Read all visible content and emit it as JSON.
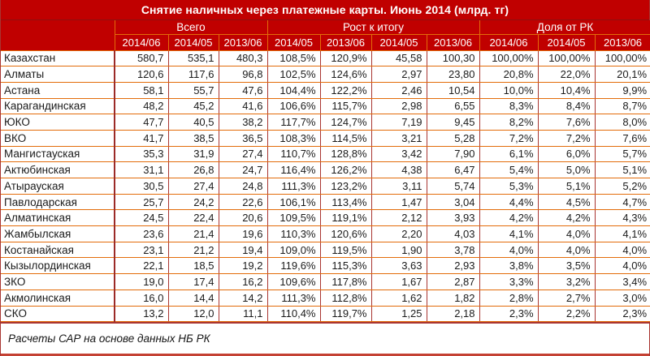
{
  "colors": {
    "header_bg": "#C00000",
    "header_text": "#FFFFFF",
    "border_orange": "#E36C0A",
    "border_dark_red": "#A93531",
    "cell_text": "#1B1B1B",
    "page_bg": "#FFFFFF"
  },
  "chart_data": {
    "type": "table",
    "title": "Снятие наличных через платежные карты. Июнь 2014 (млрд. тг)",
    "source_note": "Расчеты САР на основе данных НБ РК",
    "column_groups": [
      {
        "label": "Всего",
        "span": 3
      },
      {
        "label": "Рост к итогу",
        "span": 4
      },
      {
        "label": "Доля от РК",
        "span": 3
      }
    ],
    "columns": [
      "2014/06",
      "2014/05",
      "2013/06",
      "2014/05",
      "2013/06",
      "2014/05",
      "2013/06",
      "2014/06",
      "2014/05",
      "2013/06"
    ],
    "rows": [
      {
        "region": "Казахстан",
        "values": [
          "580,7",
          "535,1",
          "480,3",
          "108,5%",
          "120,9%",
          "45,58",
          "100,30",
          "100,00%",
          "100,00%",
          "100,00%"
        ]
      },
      {
        "region": "Алматы",
        "values": [
          "120,6",
          "117,6",
          "96,8",
          "102,5%",
          "124,6%",
          "2,97",
          "23,80",
          "20,8%",
          "22,0%",
          "20,1%"
        ]
      },
      {
        "region": "Астана",
        "values": [
          "58,1",
          "55,7",
          "47,6",
          "104,4%",
          "122,2%",
          "2,46",
          "10,54",
          "10,0%",
          "10,4%",
          "9,9%"
        ]
      },
      {
        "region": "Карагандинская",
        "values": [
          "48,2",
          "45,2",
          "41,6",
          "106,6%",
          "115,7%",
          "2,98",
          "6,55",
          "8,3%",
          "8,4%",
          "8,7%"
        ]
      },
      {
        "region": "ЮКО",
        "values": [
          "47,7",
          "40,5",
          "38,2",
          "117,7%",
          "124,7%",
          "7,19",
          "9,45",
          "8,2%",
          "7,6%",
          "8,0%"
        ]
      },
      {
        "region": "ВКО",
        "values": [
          "41,7",
          "38,5",
          "36,5",
          "108,3%",
          "114,5%",
          "3,21",
          "5,28",
          "7,2%",
          "7,2%",
          "7,6%"
        ]
      },
      {
        "region": "Мангистауская",
        "values": [
          "35,3",
          "31,9",
          "27,4",
          "110,7%",
          "128,8%",
          "3,42",
          "7,90",
          "6,1%",
          "6,0%",
          "5,7%"
        ]
      },
      {
        "region": "Актюбинская",
        "values": [
          "31,1",
          "26,8",
          "24,7",
          "116,4%",
          "126,2%",
          "4,38",
          "6,47",
          "5,4%",
          "5,0%",
          "5,1%"
        ]
      },
      {
        "region": "Атырауская",
        "values": [
          "30,5",
          "27,4",
          "24,8",
          "111,3%",
          "123,2%",
          "3,11",
          "5,74",
          "5,3%",
          "5,1%",
          "5,2%"
        ]
      },
      {
        "region": "Павлодарская",
        "values": [
          "25,7",
          "24,2",
          "22,6",
          "106,1%",
          "113,4%",
          "1,47",
          "3,04",
          "4,4%",
          "4,5%",
          "4,7%"
        ]
      },
      {
        "region": "Алматинская",
        "values": [
          "24,5",
          "22,4",
          "20,6",
          "109,5%",
          "119,1%",
          "2,12",
          "3,93",
          "4,2%",
          "4,2%",
          "4,3%"
        ]
      },
      {
        "region": "Жамбылская",
        "values": [
          "23,6",
          "21,4",
          "19,6",
          "110,3%",
          "120,6%",
          "2,20",
          "4,03",
          "4,1%",
          "4,0%",
          "4,1%"
        ]
      },
      {
        "region": "Костанайская",
        "values": [
          "23,1",
          "21,2",
          "19,4",
          "109,0%",
          "119,5%",
          "1,90",
          "3,78",
          "4,0%",
          "4,0%",
          "4,0%"
        ]
      },
      {
        "region": "Кызылординская",
        "values": [
          "22,1",
          "18,5",
          "19,2",
          "119,6%",
          "115,3%",
          "3,63",
          "2,93",
          "3,8%",
          "3,5%",
          "4,0%"
        ]
      },
      {
        "region": "ЗКО",
        "values": [
          "19,0",
          "17,4",
          "16,2",
          "109,6%",
          "117,8%",
          "1,67",
          "2,87",
          "3,3%",
          "3,2%",
          "3,4%"
        ]
      },
      {
        "region": "Акмолинская",
        "values": [
          "16,0",
          "14,4",
          "14,2",
          "111,3%",
          "112,8%",
          "1,62",
          "1,82",
          "2,8%",
          "2,7%",
          "3,0%"
        ]
      },
      {
        "region": "СКО",
        "values": [
          "13,2",
          "12,0",
          "11,1",
          "110,4%",
          "119,7%",
          "1,25",
          "2,18",
          "2,3%",
          "2,2%",
          "2,3%"
        ]
      }
    ]
  }
}
